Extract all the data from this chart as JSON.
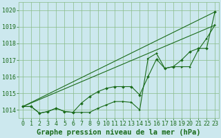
{
  "background_color": "#cce8ee",
  "plot_bg_color": "#cce8ee",
  "grid_color": "#88bb88",
  "line_color": "#1a6b1a",
  "title": "Graphe pression niveau de la mer (hPa)",
  "xlim": [
    -0.5,
    23.5
  ],
  "ylim": [
    1013.5,
    1020.5
  ],
  "yticks": [
    1014,
    1015,
    1016,
    1017,
    1018,
    1019,
    1020
  ],
  "xticks": [
    0,
    1,
    2,
    3,
    4,
    5,
    6,
    7,
    8,
    9,
    10,
    11,
    12,
    13,
    14,
    15,
    16,
    17,
    18,
    19,
    20,
    21,
    22,
    23
  ],
  "series1": [
    1014.2,
    1014.2,
    1013.8,
    1013.9,
    1014.1,
    1013.9,
    1013.85,
    1013.85,
    1013.85,
    1014.1,
    1014.3,
    1014.5,
    1014.5,
    1014.45,
    1014.0,
    1017.1,
    1017.4,
    1016.5,
    1016.6,
    1016.6,
    1016.6,
    1017.6,
    1018.3,
    1019.1
  ],
  "series2": [
    1014.2,
    1014.2,
    1013.8,
    1013.9,
    1014.1,
    1013.9,
    1013.85,
    1014.4,
    1014.8,
    1015.1,
    1015.3,
    1015.4,
    1015.4,
    1015.4,
    1014.9,
    1016.0,
    1017.05,
    1016.5,
    1016.6,
    1017.0,
    1017.5,
    1017.7,
    1017.7,
    1019.9
  ],
  "line1_x": [
    0,
    23
  ],
  "line1_y": [
    1014.2,
    1019.9
  ],
  "line2_x": [
    0,
    23
  ],
  "line2_y": [
    1014.2,
    1019.1
  ],
  "title_fontsize": 7.5,
  "tick_fontsize": 6,
  "marker_size": 2.0,
  "line_width": 0.8
}
